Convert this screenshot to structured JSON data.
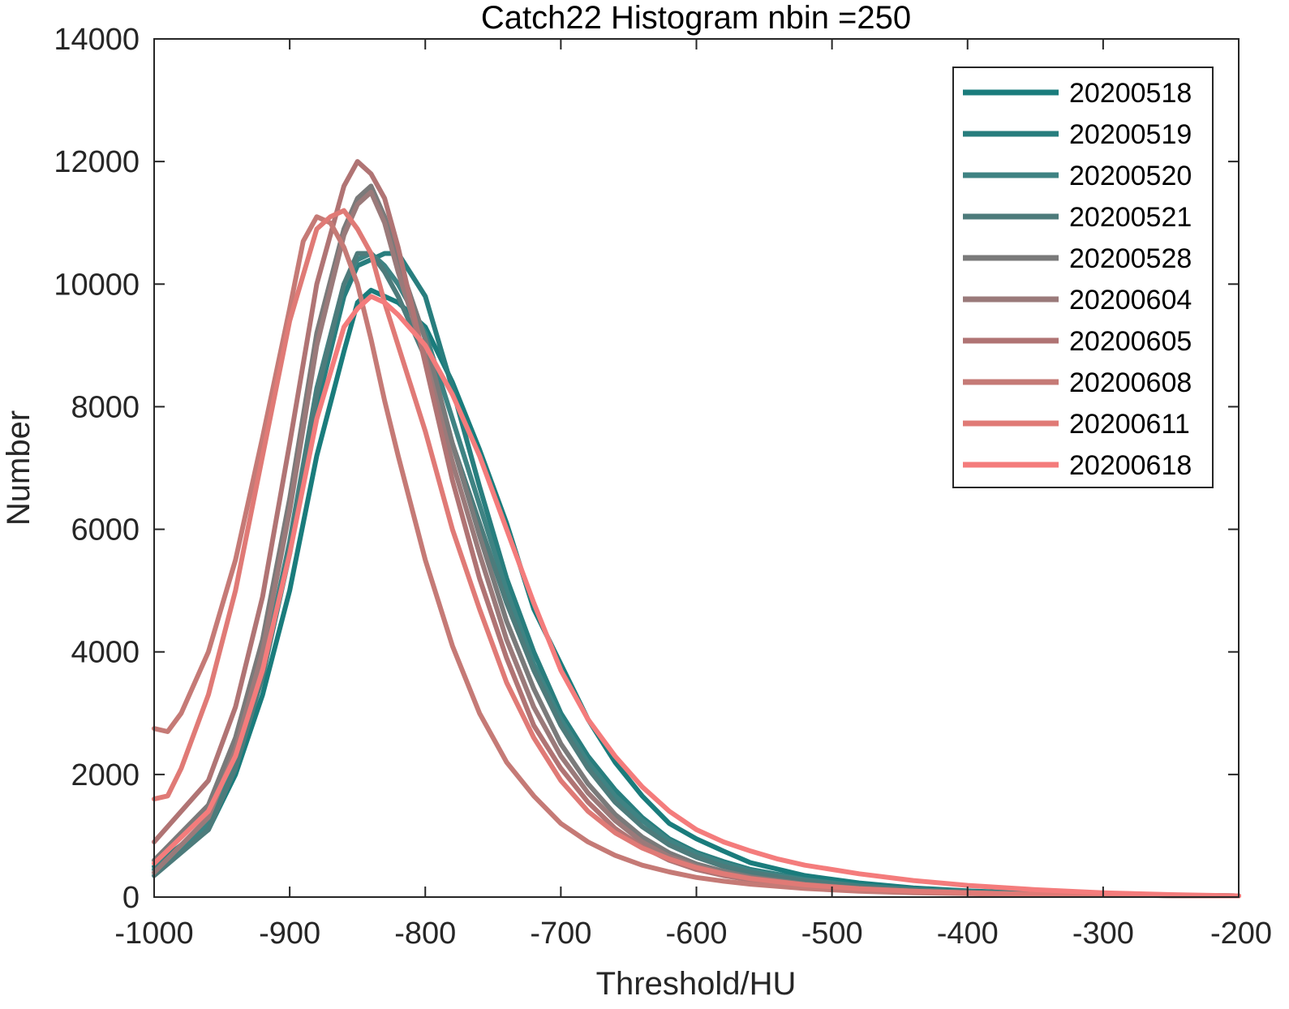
{
  "chart_data": {
    "type": "line",
    "title": "Catch22  Histogram nbin =250",
    "xlabel": "Threshold/HU",
    "ylabel": "Number",
    "xlim": [
      -1000,
      -200
    ],
    "ylim": [
      0,
      14000
    ],
    "xticks": [
      -1000,
      -900,
      -800,
      -700,
      -600,
      -500,
      -400,
      -300,
      -200
    ],
    "xtick_labels": [
      "-1000",
      "-900",
      "-800",
      "-700",
      "-600",
      "-500",
      "-400",
      "-300",
      "-200"
    ],
    "yticks": [
      0,
      2000,
      4000,
      6000,
      8000,
      10000,
      12000,
      14000
    ],
    "ytick_labels": [
      "0",
      "2000",
      "4000",
      "6000",
      "8000",
      "10000",
      "12000",
      "14000"
    ],
    "grid": false,
    "legend_position": "top-right",
    "series": [
      {
        "name": "20200518",
        "color": "#1a7c7c",
        "x": [
          -1000,
          -960,
          -940,
          -920,
          -900,
          -880,
          -860,
          -850,
          -840,
          -830,
          -820,
          -800,
          -780,
          -760,
          -740,
          -720,
          -700,
          -680,
          -660,
          -640,
          -620,
          -600,
          -580,
          -560,
          -520,
          -480,
          -440,
          -400,
          -350,
          -300,
          -250,
          -200
        ],
        "y": [
          400,
          1100,
          2000,
          3300,
          5000,
          7200,
          8900,
          9700,
          9900,
          9800,
          9700,
          9300,
          8400,
          7300,
          6100,
          4700,
          3800,
          2900,
          2200,
          1650,
          1200,
          950,
          750,
          560,
          350,
          230,
          150,
          100,
          60,
          40,
          30,
          20
        ]
      },
      {
        "name": "20200519",
        "color": "#287e7e",
        "x": [
          -1000,
          -960,
          -940,
          -920,
          -900,
          -880,
          -860,
          -850,
          -840,
          -830,
          -820,
          -800,
          -780,
          -760,
          -740,
          -720,
          -700,
          -680,
          -660,
          -640,
          -620,
          -600,
          -580,
          -560,
          -520,
          -480,
          -440,
          -400,
          -350,
          -300,
          -250,
          -200
        ],
        "y": [
          500,
          1200,
          2200,
          3600,
          5600,
          8000,
          9800,
          10300,
          10400,
          10500,
          10500,
          9800,
          8300,
          6700,
          5200,
          4000,
          3000,
          2300,
          1750,
          1300,
          950,
          730,
          580,
          450,
          290,
          190,
          130,
          90,
          55,
          35,
          25,
          20
        ]
      },
      {
        "name": "20200520",
        "color": "#3f8383",
        "x": [
          -1000,
          -960,
          -940,
          -920,
          -900,
          -880,
          -860,
          -850,
          -840,
          -830,
          -820,
          -800,
          -780,
          -760,
          -740,
          -720,
          -700,
          -680,
          -660,
          -640,
          -620,
          -600,
          -580,
          -560,
          -520,
          -480,
          -440,
          -400,
          -350,
          -300,
          -250,
          -200
        ],
        "y": [
          450,
          1200,
          2200,
          3700,
          5800,
          8300,
          10000,
          10400,
          10500,
          10300,
          10000,
          9200,
          7800,
          6400,
          5000,
          3800,
          2900,
          2200,
          1650,
          1250,
          920,
          700,
          550,
          430,
          280,
          180,
          120,
          85,
          50,
          35,
          25,
          20
        ]
      },
      {
        "name": "20200521",
        "color": "#4d7b7b",
        "x": [
          -1000,
          -960,
          -940,
          -920,
          -900,
          -880,
          -860,
          -850,
          -840,
          -830,
          -820,
          -800,
          -780,
          -760,
          -740,
          -720,
          -700,
          -680,
          -660,
          -640,
          -620,
          -600,
          -580,
          -560,
          -520,
          -480,
          -440,
          -400,
          -350,
          -300,
          -250,
          -200
        ],
        "y": [
          350,
          1100,
          2100,
          3600,
          5700,
          8200,
          10000,
          10500,
          10500,
          10200,
          9800,
          8800,
          7400,
          6100,
          4800,
          3700,
          2800,
          2100,
          1550,
          1150,
          850,
          650,
          500,
          400,
          260,
          170,
          115,
          80,
          50,
          35,
          25,
          20
        ]
      },
      {
        "name": "20200528",
        "color": "#7a7a7a",
        "x": [
          -1000,
          -960,
          -940,
          -920,
          -900,
          -880,
          -860,
          -850,
          -840,
          -830,
          -820,
          -800,
          -780,
          -760,
          -740,
          -720,
          -700,
          -680,
          -660,
          -640,
          -620,
          -600,
          -580,
          -560,
          -520,
          -480,
          -440,
          -400,
          -350,
          -300,
          -250,
          -200
        ],
        "y": [
          600,
          1500,
          2600,
          4200,
          6500,
          9200,
          10900,
          11400,
          11600,
          11100,
          10400,
          9100,
          7400,
          5900,
          4500,
          3400,
          2500,
          1850,
          1350,
          980,
          720,
          540,
          420,
          330,
          210,
          140,
          95,
          70,
          45,
          30,
          25,
          20
        ]
      },
      {
        "name": "20200604",
        "color": "#9a7a7a",
        "x": [
          -1000,
          -960,
          -940,
          -920,
          -900,
          -880,
          -860,
          -850,
          -840,
          -830,
          -820,
          -800,
          -780,
          -760,
          -740,
          -720,
          -700,
          -680,
          -660,
          -640,
          -620,
          -600,
          -580,
          -560,
          -520,
          -480,
          -440,
          -400,
          -350,
          -300,
          -250,
          -200
        ],
        "y": [
          400,
          1300,
          2400,
          4000,
          6300,
          9000,
          10800,
          11300,
          11500,
          11000,
          10200,
          8800,
          7100,
          5600,
          4200,
          3100,
          2300,
          1700,
          1250,
          900,
          660,
          500,
          390,
          310,
          200,
          135,
          95,
          70,
          45,
          30,
          25,
          20
        ]
      },
      {
        "name": "20200605",
        "color": "#b07474",
        "x": [
          -1000,
          -960,
          -940,
          -920,
          -900,
          -880,
          -860,
          -850,
          -840,
          -830,
          -820,
          -800,
          -780,
          -760,
          -740,
          -720,
          -700,
          -680,
          -660,
          -640,
          -620,
          -600,
          -580,
          -560,
          -520,
          -480,
          -440,
          -400,
          -350,
          -300,
          -250,
          -200
        ],
        "y": [
          900,
          1900,
          3100,
          4900,
          7400,
          10000,
          11600,
          12000,
          11800,
          11400,
          10600,
          8700,
          6800,
          5200,
          3900,
          2800,
          2100,
          1550,
          1120,
          820,
          600,
          450,
          350,
          280,
          180,
          120,
          85,
          60,
          40,
          30,
          25,
          20
        ]
      },
      {
        "name": "20200608",
        "color": "#c57a76",
        "x": [
          -1000,
          -990,
          -980,
          -960,
          -940,
          -920,
          -900,
          -890,
          -880,
          -870,
          -860,
          -850,
          -840,
          -830,
          -820,
          -800,
          -780,
          -760,
          -740,
          -720,
          -700,
          -680,
          -660,
          -640,
          -620,
          -600,
          -580,
          -560,
          -520,
          -480,
          -440,
          -400,
          -350,
          -300,
          -250,
          -200
        ],
        "y": [
          2750,
          2700,
          3000,
          4000,
          5500,
          7500,
          9600,
          10700,
          11100,
          11000,
          10600,
          10000,
          9100,
          8100,
          7200,
          5500,
          4100,
          3000,
          2200,
          1650,
          1200,
          900,
          680,
          520,
          410,
          320,
          260,
          210,
          140,
          95,
          70,
          55,
          40,
          30,
          25,
          20
        ]
      },
      {
        "name": "20200611",
        "color": "#e07a76",
        "x": [
          -1000,
          -990,
          -980,
          -960,
          -940,
          -920,
          -900,
          -880,
          -870,
          -860,
          -850,
          -840,
          -830,
          -820,
          -800,
          -780,
          -760,
          -740,
          -720,
          -700,
          -680,
          -660,
          -640,
          -620,
          -600,
          -580,
          -560,
          -520,
          -480,
          -440,
          -400,
          -350,
          -300,
          -250,
          -200
        ],
        "y": [
          1600,
          1650,
          2100,
          3300,
          5000,
          7200,
          9400,
          10900,
          11100,
          11200,
          10900,
          10500,
          9700,
          9000,
          7600,
          6000,
          4700,
          3500,
          2600,
          1900,
          1400,
          1050,
          800,
          620,
          480,
          380,
          300,
          200,
          135,
          95,
          70,
          45,
          35,
          25,
          20
        ]
      },
      {
        "name": "20200618",
        "color": "#f47c7c",
        "x": [
          -1000,
          -960,
          -940,
          -920,
          -900,
          -880,
          -860,
          -850,
          -840,
          -830,
          -820,
          -800,
          -780,
          -760,
          -740,
          -720,
          -700,
          -680,
          -660,
          -640,
          -620,
          -600,
          -580,
          -560,
          -540,
          -520,
          -480,
          -440,
          -400,
          -350,
          -300,
          -250,
          -200
        ],
        "y": [
          550,
          1400,
          2300,
          3700,
          5600,
          7800,
          9300,
          9600,
          9800,
          9700,
          9500,
          9000,
          8200,
          7200,
          6000,
          4800,
          3700,
          2900,
          2300,
          1800,
          1400,
          1100,
          900,
          750,
          620,
          520,
          380,
          270,
          190,
          120,
          70,
          40,
          20
        ]
      }
    ]
  }
}
